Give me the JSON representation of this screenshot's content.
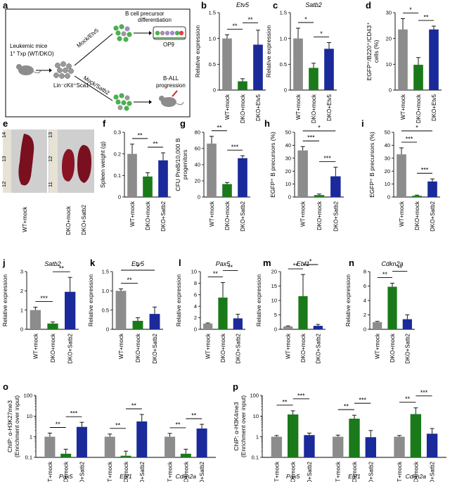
{
  "colors": {
    "wt": "#8c8c8c",
    "dko": "#1a7a1a",
    "rescue": "#1a2a9a",
    "cell_green": "#4caf50",
    "cell_gray": "#9a9a9a",
    "cell_purple": "#a58bc8"
  },
  "panel_a": {
    "letter": "a",
    "mouse_label_line1": "Leukemic mice",
    "mouse_label_line2": "1° Txp (WT/DKO)",
    "sorted_cells_label": "Lin⁻cKit⁺Sca1⁺",
    "upper_arrow_label": "Mock/Etv5",
    "lower_arrow_label": "Mock/Satb2",
    "upper_outcome_line1": "B cell precursor",
    "upper_outcome_line2": "differentiation",
    "dish_label": "OP9",
    "lower_outcome_line1": "B-ALL",
    "lower_outcome_line2": "progression"
  },
  "panel_e": {
    "letter": "e",
    "label_left": "WT+mock",
    "label_right_1": "DKO+mock",
    "label_right_2": "DKO+Satb2",
    "ruler_marks_left": [
      "12",
      "13",
      "14"
    ],
    "ruler_marks_right": [
      "11",
      "12",
      "13"
    ]
  },
  "chart_data": [
    {
      "id": "b",
      "type": "bar",
      "gene": "Etv5",
      "ylabel": "Relative expression",
      "ylim": [
        0,
        1.5
      ],
      "yticks": [
        "0",
        "0.5",
        "1.0",
        "1.5"
      ],
      "categories": [
        "WT+mock",
        "DKO+mock",
        "DKO+Etv5"
      ],
      "values": [
        1.0,
        0.17,
        0.88
      ],
      "errors": [
        0.07,
        0.05,
        0.28
      ],
      "significance": [
        {
          "from": 0,
          "to": 1,
          "label": "**"
        },
        {
          "from": 1,
          "to": 2,
          "label": "**"
        }
      ]
    },
    {
      "id": "c",
      "type": "bar",
      "gene": "Satb2",
      "ylabel": "Relative expression",
      "ylim": [
        0,
        1.5
      ],
      "yticks": [
        "0",
        "0.5",
        "1.0",
        "1.5"
      ],
      "categories": [
        "WT+mock",
        "DKO+mock",
        "DKO+Etv5"
      ],
      "values": [
        1.0,
        0.43,
        0.8
      ],
      "errors": [
        0.2,
        0.09,
        0.12
      ],
      "significance": [
        {
          "from": 0,
          "to": 1,
          "label": "*"
        },
        {
          "from": 1,
          "to": 2,
          "label": "*"
        }
      ]
    },
    {
      "id": "d",
      "type": "bar",
      "ylabel": "EGFP⁺/B220⁺/CD43⁺ cells (%)",
      "ylim": [
        0,
        30
      ],
      "yticks": [
        "0",
        "10",
        "20",
        "30"
      ],
      "categories": [
        "WT+mock",
        "DKO+mock",
        "DKO+Etv5"
      ],
      "values": [
        23.5,
        9.8,
        23.5
      ],
      "errors": [
        4.2,
        2.8,
        1.3
      ],
      "significance": [
        {
          "from": 0,
          "to": 1,
          "label": "*"
        },
        {
          "from": 1,
          "to": 2,
          "label": "**"
        }
      ]
    },
    {
      "id": "f",
      "type": "bar",
      "ylabel": "Spleen weight (g)",
      "ylim": [
        0,
        0.3
      ],
      "yticks": [
        "0",
        "0.1",
        "0.2",
        "0.3"
      ],
      "categories": [
        "WT+mock",
        "DKO+mock",
        "DKO+Satb2"
      ],
      "values": [
        0.2,
        0.095,
        0.17
      ],
      "errors": [
        0.045,
        0.018,
        0.035
      ],
      "significance": [
        {
          "from": 0,
          "to": 1,
          "label": "**"
        },
        {
          "from": 1,
          "to": 2,
          "label": "**"
        }
      ]
    },
    {
      "id": "g",
      "type": "bar",
      "ylabel": "CFU PreB/10,000 B progenitors",
      "ylim": [
        0,
        80
      ],
      "yticks": [
        "0",
        "20",
        "40",
        "60",
        "80"
      ],
      "categories": [
        "WT+mock",
        "DKO+mock",
        "DKO+Satb2"
      ],
      "values": [
        66,
        16,
        48
      ],
      "errors": [
        9,
        2,
        3
      ],
      "significance": [
        {
          "from": 0,
          "to": 1,
          "label": "**"
        },
        {
          "from": 1,
          "to": 2,
          "label": "***"
        }
      ]
    },
    {
      "id": "h",
      "type": "bar",
      "ylabel": "EGFP⁺ B precursors (%)",
      "ylim": [
        0,
        50
      ],
      "yticks": [
        "0",
        "10",
        "20",
        "30",
        "40",
        "50"
      ],
      "categories": [
        "WT+mock",
        "DKO+mock",
        "DKO+Satb2"
      ],
      "values": [
        36,
        1.5,
        16
      ],
      "errors": [
        3,
        0.8,
        7
      ],
      "significance": [
        {
          "from": 0,
          "to": 1,
          "label": "***"
        },
        {
          "from": 0,
          "to": 2,
          "label": "*"
        },
        {
          "from": 1,
          "to": 2,
          "label": "***"
        }
      ]
    },
    {
      "id": "i",
      "type": "bar",
      "ylabel": "EGFP⁺ B precursors (%)",
      "ylim": [
        0,
        50
      ],
      "yticks": [
        "0",
        "10",
        "20",
        "30",
        "40",
        "50"
      ],
      "categories": [
        "WT+mock",
        "DKO+mock",
        "DKO+Satb2"
      ],
      "values": [
        33,
        1,
        12
      ],
      "errors": [
        5,
        0.5,
        2
      ],
      "significance": [
        {
          "from": 0,
          "to": 1,
          "label": "***"
        },
        {
          "from": 0,
          "to": 2,
          "label": "*"
        },
        {
          "from": 1,
          "to": 2,
          "label": "***"
        }
      ]
    },
    {
      "id": "j",
      "type": "bar",
      "gene": "Satb2",
      "ylabel": "Relative expression",
      "ylim": [
        0,
        3
      ],
      "yticks": [
        "0",
        "1",
        "2",
        "3"
      ],
      "categories": [
        "WT+mock",
        "DKO+mock",
        "DKO+Satb2"
      ],
      "values": [
        1.0,
        0.3,
        1.95
      ],
      "errors": [
        0.15,
        0.08,
        0.75
      ],
      "significance": [
        {
          "from": 0,
          "to": 1,
          "label": "***"
        },
        {
          "from": 1,
          "to": 2,
          "label": "**"
        }
      ]
    },
    {
      "id": "k",
      "type": "bar",
      "gene": "Etv5",
      "ylabel": "Relative expression",
      "ylim": [
        0,
        1.5
      ],
      "yticks": [
        "0",
        "0.5",
        "1.0",
        "1.5"
      ],
      "categories": [
        "WT+mock",
        "DKO+mock",
        "DKO+Satb2"
      ],
      "values": [
        1.0,
        0.22,
        0.4
      ],
      "errors": [
        0.05,
        0.08,
        0.18
      ],
      "significance": [
        {
          "from": 0,
          "to": 1,
          "label": "**"
        },
        {
          "from": 0,
          "to": 2,
          "label": "*"
        }
      ]
    },
    {
      "id": "l",
      "type": "bar",
      "gene": "Pax5",
      "ylabel": "Relative expression",
      "ylim": [
        0,
        10
      ],
      "yticks": [
        "0",
        "2",
        "4",
        "6",
        "8",
        "10"
      ],
      "categories": [
        "WT+mock",
        "DKO+mock",
        "DKO+Satb2"
      ],
      "values": [
        1.0,
        5.5,
        1.9
      ],
      "errors": [
        0.1,
        2.6,
        0.7
      ],
      "significance": [
        {
          "from": 0,
          "to": 1,
          "label": "**"
        },
        {
          "from": 1,
          "to": 2,
          "label": "**"
        }
      ]
    },
    {
      "id": "m",
      "type": "bar",
      "gene": "Ebf1",
      "ylabel": "Relative expression",
      "ylim": [
        0,
        20
      ],
      "yticks": [
        "0",
        "5",
        "10",
        "15",
        "20"
      ],
      "categories": [
        "WT+mock",
        "DKO+mock",
        "DKO+Satb2"
      ],
      "values": [
        1.0,
        11.5,
        1.2
      ],
      "errors": [
        0.2,
        7.5,
        0.5
      ],
      "significance": [
        {
          "from": 0,
          "to": 1,
          "label": "**"
        },
        {
          "from": 1,
          "to": 2,
          "label": "*"
        }
      ]
    },
    {
      "id": "n",
      "type": "bar",
      "gene": "Cdkn2a",
      "ylabel": "Relative expression",
      "ylim": [
        0,
        8
      ],
      "yticks": [
        "0",
        "2",
        "4",
        "6",
        "8"
      ],
      "categories": [
        "WT+mock",
        "DKO+mock",
        "DKO+Satb2"
      ],
      "values": [
        1.0,
        5.9,
        1.4
      ],
      "errors": [
        0.1,
        0.5,
        0.6
      ],
      "significance": [
        {
          "from": 0,
          "to": 1,
          "label": "**"
        },
        {
          "from": 1,
          "to": 2,
          "label": "**"
        }
      ]
    },
    {
      "id": "o",
      "type": "bar",
      "log": true,
      "ylabel": "ChIP: α-H3K27me3 (Enrichment over input)",
      "ylim": [
        0.1,
        100
      ],
      "yticks": [
        "0.1",
        "1",
        "10",
        "100"
      ],
      "groups": [
        "Pax5",
        "Ebf1",
        "Cdkn2a"
      ],
      "categories": [
        "WT+mock",
        "DKO+mock",
        "DKO+Satb2"
      ],
      "series_values": [
        [
          1.0,
          0.15,
          3.0
        ],
        [
          1.0,
          0.12,
          5.5
        ],
        [
          1.0,
          0.15,
          2.5
        ]
      ],
      "series_errors": [
        [
          1.5,
          0.25,
          5.0
        ],
        [
          1.35,
          0.2,
          12.0
        ],
        [
          1.45,
          0.25,
          4.0
        ]
      ],
      "significance": [
        [
          {
            "from": 0,
            "to": 1,
            "label": "**"
          },
          {
            "from": 1,
            "to": 2,
            "label": "***"
          }
        ],
        [
          {
            "from": 0,
            "to": 1,
            "label": "**"
          },
          {
            "from": 1,
            "to": 2,
            "label": "**"
          }
        ],
        [
          {
            "from": 0,
            "to": 1,
            "label": "**"
          },
          {
            "from": 1,
            "to": 2,
            "label": "**"
          }
        ]
      ]
    },
    {
      "id": "p",
      "type": "bar",
      "log": true,
      "ylabel": "ChIP: α-H3K4me3 (Enrichment over input)",
      "ylim": [
        0.1,
        100
      ],
      "yticks": [
        "0.1",
        "1",
        "10",
        "100"
      ],
      "groups": [
        "Pax5",
        "Ebf1",
        "Cdkn2a"
      ],
      "categories": [
        "WT+mock",
        "DKO+mock",
        "DKO+Satb2"
      ],
      "series_values": [
        [
          1.0,
          12.0,
          1.2
        ],
        [
          1.0,
          7.5,
          0.95
        ],
        [
          1.0,
          12.5,
          1.4
        ]
      ],
      "series_errors": [
        [
          1.15,
          18.0,
          1.5
        ],
        [
          1.2,
          11.0,
          2.0
        ],
        [
          1.15,
          25.0,
          2.5
        ]
      ],
      "significance": [
        [
          {
            "from": 0,
            "to": 1,
            "label": "**"
          },
          {
            "from": 1,
            "to": 2,
            "label": "***"
          }
        ],
        [
          {
            "from": 0,
            "to": 1,
            "label": "**"
          },
          {
            "from": 1,
            "to": 2,
            "label": "***"
          }
        ],
        [
          {
            "from": 0,
            "to": 1,
            "label": "**"
          },
          {
            "from": 1,
            "to": 2,
            "label": "***"
          }
        ]
      ]
    }
  ]
}
